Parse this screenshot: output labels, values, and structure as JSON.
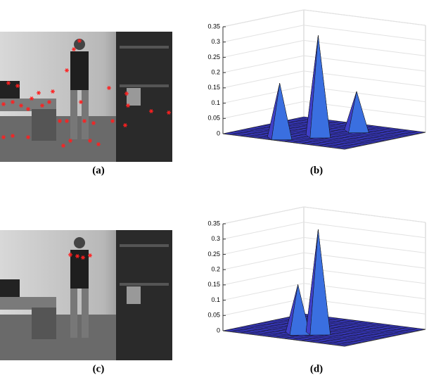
{
  "panels": [
    {
      "label": "(a)"
    },
    {
      "label": "(b)",
      "zlim": [
        0,
        0.35
      ],
      "zticks": [
        0,
        0.05,
        0.1,
        0.15,
        0.2,
        0.25,
        0.3,
        0.35
      ],
      "peaks": [
        {
          "u": 0.55,
          "v": 0.35,
          "z": 0.33
        },
        {
          "u": 0.4,
          "v": 0.1,
          "z": 0.18
        },
        {
          "u": 0.62,
          "v": 0.72,
          "z": 0.13
        }
      ]
    },
    {
      "label": "(c)"
    },
    {
      "label": "(d)",
      "zlim": [
        0,
        0.35
      ],
      "zticks": [
        0,
        0.05,
        0.1,
        0.15,
        0.2,
        0.25,
        0.3,
        0.35
      ],
      "peaks": [
        {
          "u": 0.55,
          "v": 0.35,
          "z": 0.34
        },
        {
          "u": 0.45,
          "v": 0.25,
          "z": 0.16
        }
      ]
    }
  ]
}
